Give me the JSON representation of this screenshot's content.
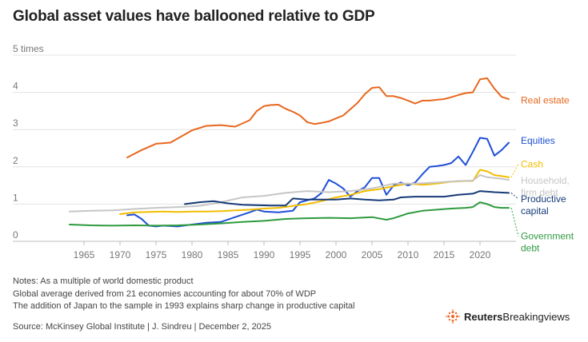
{
  "title": "Global asset values have ballooned relative to GDP",
  "chart_data": {
    "type": "line",
    "title": "Global asset values have ballooned relative to GDP",
    "ylim": [
      0,
      5
    ],
    "xlim": [
      1960,
      2025
    ],
    "yticks": [
      0,
      1,
      2,
      3,
      4,
      5
    ],
    "ytick_labels": [
      "0",
      "1",
      "2",
      "3",
      "4",
      "5 times"
    ],
    "xticks": [
      1965,
      1970,
      1975,
      1980,
      1985,
      1990,
      1995,
      2000,
      2005,
      2010,
      2015,
      2020
    ],
    "grid": true,
    "legend": "direct labels at right",
    "series": [
      {
        "name": "Real estate",
        "color": "#e8671e",
        "label_lines": [
          "Real estate"
        ],
        "label_value": 3.7,
        "x": [
          1971,
          1973,
          1975,
          1977,
          1979,
          1980,
          1982,
          1984,
          1986,
          1988,
          1989,
          1990,
          1991,
          1992,
          1993,
          1994,
          1995,
          1996,
          1997,
          1998,
          1999,
          2000,
          2001,
          2002,
          2003,
          2004,
          2005,
          2006,
          2007,
          2008,
          2009,
          2010,
          2011,
          2012,
          2013,
          2014,
          2015,
          2016,
          2017,
          2018,
          2019,
          2020,
          2021,
          2022,
          2023,
          2024
        ],
        "y": [
          2.25,
          2.45,
          2.62,
          2.65,
          2.87,
          2.98,
          3.1,
          3.12,
          3.08,
          3.25,
          3.5,
          3.63,
          3.66,
          3.67,
          3.56,
          3.48,
          3.38,
          3.2,
          3.15,
          3.18,
          3.22,
          3.3,
          3.38,
          3.55,
          3.72,
          3.95,
          4.12,
          4.14,
          3.9,
          3.9,
          3.85,
          3.78,
          3.7,
          3.78,
          3.78,
          3.8,
          3.82,
          3.87,
          3.93,
          3.98,
          4.0,
          4.35,
          4.38,
          4.1,
          3.88,
          3.82
        ]
      },
      {
        "name": "Equities",
        "color": "#1e4fd6",
        "label_lines": [
          "Equities"
        ],
        "label_value": 2.62,
        "x": [
          1971,
          1972,
          1973,
          1974,
          1975,
          1976,
          1978,
          1980,
          1982,
          1984,
          1986,
          1988,
          1989,
          1990,
          1992,
          1994,
          1995,
          1996,
          1997,
          1998,
          1999,
          2000,
          2001,
          2002,
          2003,
          2004,
          2005,
          2006,
          2007,
          2008,
          2009,
          2010,
          2011,
          2012,
          2013,
          2014,
          2015,
          2016,
          2017,
          2018,
          2019,
          2020,
          2021,
          2022,
          2023,
          2024
        ],
        "y": [
          0.7,
          0.72,
          0.6,
          0.42,
          0.4,
          0.42,
          0.4,
          0.45,
          0.5,
          0.52,
          0.65,
          0.78,
          0.85,
          0.8,
          0.78,
          0.82,
          1.05,
          1.1,
          1.15,
          1.3,
          1.65,
          1.55,
          1.42,
          1.2,
          1.35,
          1.45,
          1.7,
          1.7,
          1.25,
          1.5,
          1.58,
          1.5,
          1.58,
          1.8,
          2.0,
          2.02,
          2.05,
          2.1,
          2.28,
          2.05,
          2.4,
          2.78,
          2.75,
          2.3,
          2.45,
          2.65
        ]
      },
      {
        "name": "Cash",
        "color": "#f2bd00",
        "label_lines": [
          "Cash"
        ],
        "label_value": 1.98,
        "x": [
          1970,
          1972,
          1974,
          1976,
          1978,
          1980,
          1982,
          1984,
          1986,
          1988,
          1990,
          1992,
          1994,
          1996,
          1998,
          2000,
          2002,
          2004,
          2006,
          2008,
          2010,
          2012,
          2014,
          2016,
          2018,
          2019,
          2020,
          2021,
          2022,
          2023,
          2024
        ],
        "y": [
          0.73,
          0.78,
          0.79,
          0.8,
          0.79,
          0.8,
          0.8,
          0.81,
          0.83,
          0.85,
          0.88,
          0.9,
          0.95,
          1.0,
          1.08,
          1.18,
          1.25,
          1.35,
          1.4,
          1.48,
          1.55,
          1.52,
          1.55,
          1.6,
          1.62,
          1.62,
          1.92,
          1.88,
          1.78,
          1.75,
          1.72
        ]
      },
      {
        "name": "Household, firm debt",
        "color": "#c6c6c6",
        "label_lines": [
          "Household,",
          "firm debt"
        ],
        "label_value": 1.55,
        "x": [
          1963,
          1966,
          1969,
          1972,
          1975,
          1978,
          1981,
          1984,
          1987,
          1990,
          1993,
          1996,
          1999,
          2002,
          2005,
          2008,
          2011,
          2014,
          2017,
          2019,
          2020,
          2021,
          2022,
          2023,
          2024
        ],
        "y": [
          0.8,
          0.82,
          0.83,
          0.87,
          0.9,
          0.92,
          0.95,
          1.05,
          1.18,
          1.22,
          1.3,
          1.35,
          1.32,
          1.35,
          1.42,
          1.55,
          1.55,
          1.58,
          1.62,
          1.63,
          1.78,
          1.72,
          1.7,
          1.68,
          1.65
        ]
      },
      {
        "name": "Productive capital",
        "color": "#163a78",
        "label_lines": [
          "Productive",
          "capital"
        ],
        "label_value": 1.05,
        "x": [
          1979,
          1981,
          1983,
          1985,
          1987,
          1989,
          1991,
          1993,
          1994,
          1996,
          1998,
          2000,
          2002,
          2004,
          2006,
          2008,
          2009,
          2011,
          2013,
          2015,
          2017,
          2019,
          2020,
          2022,
          2024
        ],
        "y": [
          1.0,
          1.05,
          1.08,
          1.02,
          0.98,
          0.97,
          0.96,
          0.96,
          1.15,
          1.12,
          1.12,
          1.12,
          1.15,
          1.12,
          1.1,
          1.12,
          1.18,
          1.2,
          1.2,
          1.2,
          1.25,
          1.28,
          1.35,
          1.32,
          1.3
        ]
      },
      {
        "name": "Government debt",
        "color": "#2e9a3e",
        "label_lines": [
          "Government",
          "debt"
        ],
        "label_value": 0.05,
        "x": [
          1963,
          1966,
          1969,
          1972,
          1975,
          1978,
          1981,
          1984,
          1987,
          1990,
          1993,
          1996,
          1999,
          2002,
          2005,
          2007,
          2008,
          2010,
          2012,
          2014,
          2016,
          2018,
          2019,
          2020,
          2021,
          2022,
          2023,
          2024
        ],
        "y": [
          0.45,
          0.43,
          0.42,
          0.43,
          0.42,
          0.43,
          0.45,
          0.48,
          0.52,
          0.55,
          0.6,
          0.62,
          0.63,
          0.62,
          0.65,
          0.58,
          0.62,
          0.75,
          0.82,
          0.85,
          0.88,
          0.9,
          0.92,
          1.05,
          1.0,
          0.92,
          0.9,
          0.9
        ]
      }
    ]
  },
  "notes": [
    "Notes: As a multiple of world domestic product",
    "Global average derived from 21 economies accounting for about 70% of WDP",
    "The addition of Japan to the sample in 1993 explains sharp change in productive capital"
  ],
  "source": "Source: McKinsey Global Institute  | J. Sindreu | December 2, 2025",
  "brand": {
    "reuters": "Reuters",
    "breakingviews": "Breakingviews",
    "accent": "#f26522"
  }
}
